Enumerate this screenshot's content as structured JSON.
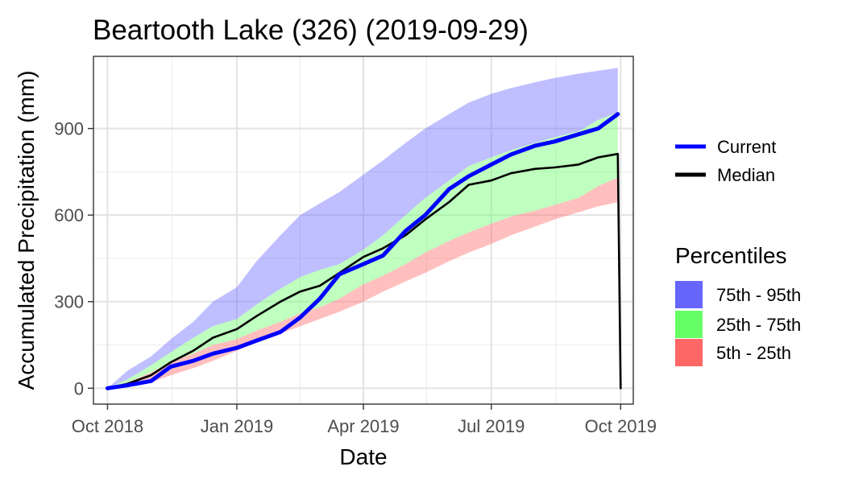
{
  "chart_data": {
    "type": "area",
    "title": "Beartooth Lake (326) (2019-09-29)",
    "xlabel": "Date",
    "ylabel": "Accumulated Precipitation (mm)",
    "ylim": [
      -55,
      1150
    ],
    "xlim": [
      "2018-09-21",
      "2019-10-10"
    ],
    "y_ticks": [
      0,
      300,
      600,
      900
    ],
    "y_tick_labels": [
      "0",
      "300",
      "600",
      "900"
    ],
    "x_ticks": [
      "2018-10-01",
      "2019-01-01",
      "2019-04-01",
      "2019-07-01",
      "2019-10-01"
    ],
    "x_tick_labels": [
      "Oct 2018",
      "Jan 2019",
      "Apr 2019",
      "Jul 2019",
      "Oct 2019"
    ],
    "grid": true,
    "legend_position": "right",
    "legend": {
      "lines": [
        {
          "label": "Current",
          "color": "#0000ff"
        },
        {
          "label": "Median",
          "color": "#000000"
        }
      ],
      "fill_title": "Percentiles",
      "fills": [
        {
          "label": "75th - 95th",
          "color": "#6666ff"
        },
        {
          "label": "25th - 75th",
          "color": "#66ff66"
        },
        {
          "label": "5th - 25th",
          "color": "#ff6666"
        }
      ]
    },
    "x": [
      "2018-10-01",
      "2018-10-15",
      "2018-11-01",
      "2018-11-15",
      "2018-12-01",
      "2018-12-15",
      "2019-01-01",
      "2019-01-15",
      "2019-02-01",
      "2019-02-15",
      "2019-03-01",
      "2019-03-15",
      "2019-04-01",
      "2019-04-15",
      "2019-05-01",
      "2019-05-15",
      "2019-06-01",
      "2019-06-15",
      "2019-07-01",
      "2019-07-15",
      "2019-08-01",
      "2019-08-15",
      "2019-09-01",
      "2019-09-15",
      "2019-09-29",
      "2019-10-01"
    ],
    "series": [
      {
        "name": "5th - 25th",
        "role": "band",
        "color": "#ff6666",
        "lower": [
          0,
          5,
          20,
          45,
          70,
          95,
          130,
          160,
          190,
          215,
          240,
          265,
          300,
          335,
          370,
          400,
          440,
          470,
          500,
          530,
          560,
          585,
          610,
          630,
          645,
          640
        ],
        "upper": [
          0,
          20,
          55,
          90,
          120,
          150,
          170,
          200,
          230,
          260,
          280,
          310,
          360,
          390,
          430,
          470,
          510,
          540,
          570,
          595,
          615,
          635,
          660,
          700,
          730,
          730
        ]
      },
      {
        "name": "25th - 75th",
        "role": "band",
        "color": "#66ff66",
        "lower": [
          0,
          20,
          55,
          90,
          120,
          150,
          170,
          200,
          230,
          260,
          280,
          310,
          360,
          390,
          430,
          470,
          510,
          540,
          570,
          595,
          615,
          635,
          660,
          700,
          730,
          730
        ],
        "upper": [
          0,
          30,
          80,
          125,
          175,
          215,
          240,
          290,
          345,
          385,
          410,
          430,
          480,
          530,
          600,
          660,
          720,
          770,
          800,
          825,
          850,
          870,
          890,
          930,
          955,
          955
        ]
      },
      {
        "name": "75th - 95th",
        "role": "band",
        "color": "#6666ff",
        "lower": [
          0,
          30,
          80,
          125,
          175,
          215,
          240,
          290,
          345,
          385,
          410,
          430,
          480,
          530,
          600,
          660,
          720,
          770,
          800,
          825,
          850,
          870,
          890,
          930,
          955,
          955
        ],
        "upper": [
          0,
          60,
          110,
          170,
          230,
          300,
          350,
          440,
          530,
          600,
          640,
          680,
          740,
          790,
          850,
          900,
          950,
          990,
          1020,
          1040,
          1060,
          1075,
          1090,
          1100,
          1110,
          1110
        ]
      },
      {
        "name": "Median",
        "role": "line",
        "color": "#000000",
        "values": [
          0,
          15,
          45,
          90,
          130,
          175,
          205,
          250,
          300,
          335,
          355,
          400,
          455,
          485,
          530,
          585,
          645,
          705,
          720,
          745,
          760,
          765,
          775,
          800,
          812,
          0
        ]
      },
      {
        "name": "Current",
        "role": "line",
        "color": "#0000ff",
        "values": [
          0,
          10,
          25,
          75,
          95,
          120,
          140,
          165,
          195,
          245,
          310,
          395,
          430,
          460,
          545,
          600,
          690,
          735,
          775,
          810,
          840,
          855,
          880,
          900,
          950,
          null
        ]
      }
    ]
  }
}
